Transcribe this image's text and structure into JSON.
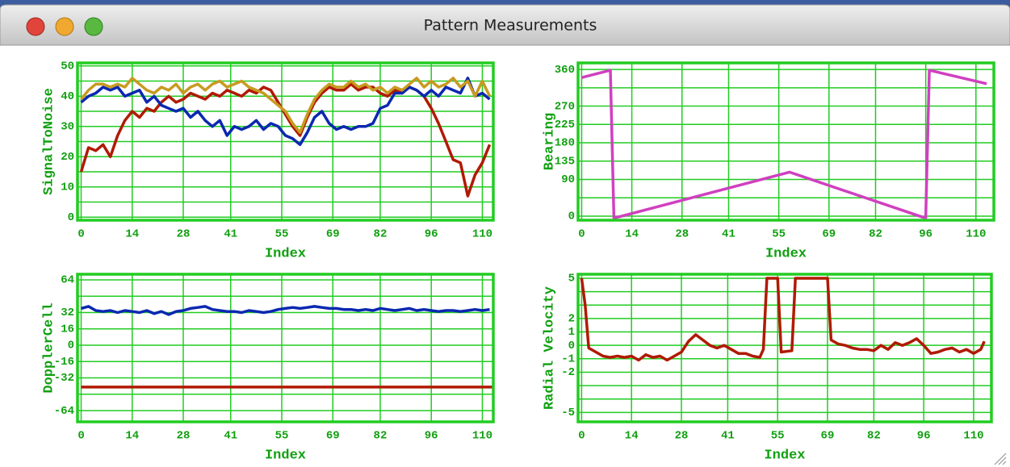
{
  "window": {
    "title": "Pattern Measurements"
  },
  "chart_data": [
    {
      "type": "line",
      "ylabel": "SignalToNoise",
      "xlabel": "Index",
      "xlim": [
        -1,
        113
      ],
      "ylim": [
        -1,
        51
      ],
      "xticks": [
        0,
        14,
        28,
        41,
        55,
        69,
        82,
        96,
        110
      ],
      "yticks": [
        0,
        10,
        20,
        30,
        40,
        50
      ],
      "yminor": [
        5,
        15,
        25,
        35,
        45
      ],
      "grid": true,
      "x": [
        0,
        2,
        4,
        6,
        8,
        10,
        12,
        14,
        16,
        18,
        20,
        22,
        24,
        26,
        28,
        30,
        32,
        34,
        36,
        38,
        40,
        42,
        44,
        46,
        48,
        50,
        52,
        54,
        56,
        58,
        60,
        62,
        64,
        66,
        68,
        70,
        72,
        74,
        76,
        78,
        80,
        82,
        84,
        86,
        88,
        90,
        92,
        94,
        96,
        98,
        100,
        102,
        104,
        106,
        108,
        110,
        112
      ],
      "series": [
        {
          "color": "#b01a00",
          "values": [
            15,
            23,
            22,
            24,
            20,
            27,
            32,
            35,
            33,
            36,
            35,
            38,
            40,
            38,
            39,
            41,
            40,
            39,
            41,
            40,
            42,
            41,
            40,
            42,
            41,
            43,
            42,
            38,
            34,
            30,
            27,
            33,
            38,
            41,
            43,
            42,
            42,
            44,
            42,
            43,
            43,
            41,
            40,
            42,
            41,
            43,
            42,
            40,
            36,
            31,
            25,
            19,
            18,
            7,
            14,
            18,
            24
          ]
        },
        {
          "color": "#0a28b0",
          "values": [
            38,
            40,
            41,
            43,
            42,
            43,
            40,
            41,
            42,
            38,
            40,
            37,
            36,
            35,
            36,
            33,
            35,
            32,
            30,
            32,
            27,
            30,
            29,
            30,
            32,
            29,
            31,
            30,
            27,
            26,
            24,
            28,
            33,
            35,
            31,
            29,
            30,
            29,
            30,
            30,
            31,
            36,
            37,
            41,
            41,
            43,
            42,
            40,
            42,
            40,
            43,
            42,
            41,
            46,
            40,
            41,
            39
          ]
        },
        {
          "color": "#c89a20",
          "values": [
            39,
            42,
            44,
            44,
            43,
            44,
            43,
            46,
            44,
            42,
            41,
            43,
            42,
            44,
            41,
            43,
            44,
            42,
            44,
            45,
            43,
            44,
            45,
            43,
            42,
            41,
            39,
            37,
            35,
            31,
            28,
            34,
            39,
            42,
            44,
            43,
            43,
            45,
            43,
            44,
            42,
            43,
            41,
            43,
            42,
            44,
            46,
            43,
            45,
            43,
            44,
            46,
            43,
            45,
            40,
            45,
            40
          ]
        }
      ]
    },
    {
      "type": "line",
      "ylabel": "Bearing",
      "xlabel": "Index",
      "xlim": [
        -1,
        115
      ],
      "ylim": [
        -10,
        376
      ],
      "xticks": [
        0,
        14,
        28,
        41,
        55,
        69,
        82,
        96,
        110
      ],
      "yticks": [
        0,
        90,
        135,
        180,
        225,
        270,
        360
      ],
      "yminor": [
        45,
        315
      ],
      "grid": true,
      "series": [
        {
          "color": "#d040c0",
          "x": [
            0,
            8,
            9,
            58,
            96,
            97,
            113
          ],
          "values": [
            340,
            358,
            -5,
            108,
            -5,
            358,
            325
          ]
        }
      ]
    },
    {
      "type": "line",
      "ylabel": "DopplerCell",
      "xlabel": "Index",
      "xlim": [
        -1,
        113
      ],
      "ylim": [
        -75,
        69.5
      ],
      "xticks": [
        0,
        14,
        28,
        41,
        55,
        69,
        82,
        96,
        110
      ],
      "yticks": [
        -64,
        -32,
        -16,
        0,
        16,
        32,
        64
      ],
      "yminor": [
        48,
        -48
      ],
      "grid": true,
      "x": [
        0,
        2,
        4,
        6,
        8,
        10,
        12,
        14,
        16,
        18,
        20,
        22,
        24,
        26,
        28,
        30,
        32,
        34,
        36,
        38,
        40,
        42,
        44,
        46,
        48,
        50,
        52,
        54,
        56,
        58,
        60,
        62,
        64,
        66,
        68,
        70,
        72,
        74,
        76,
        78,
        80,
        82,
        84,
        86,
        88,
        90,
        92,
        94,
        96,
        98,
        100,
        102,
        104,
        106,
        108,
        110,
        112
      ],
      "series": [
        {
          "color": "#0a28b0",
          "values": [
            36,
            38,
            34,
            33,
            34,
            32,
            34,
            33,
            32,
            34,
            31,
            33,
            30,
            33,
            34,
            36,
            37,
            38,
            35,
            34,
            33,
            33,
            32,
            34,
            33,
            32,
            33,
            35,
            36,
            37,
            36,
            37,
            38,
            37,
            36,
            36,
            35,
            35,
            34,
            35,
            34,
            36,
            35,
            34,
            35,
            36,
            34,
            35,
            34,
            33,
            34,
            34,
            33,
            34,
            35,
            34,
            35
          ]
        },
        {
          "color": "#b01a00",
          "x": [
            0,
            113
          ],
          "values": [
            -41,
            -41
          ]
        }
      ]
    },
    {
      "type": "line",
      "ylabel": "Radial Velocity",
      "xlabel": "Index",
      "xlim": [
        -1,
        115
      ],
      "ylim": [
        -5.7,
        5.3
      ],
      "xticks": [
        0,
        14,
        28,
        41,
        55,
        69,
        82,
        96,
        110
      ],
      "yticks": [
        -5,
        -2,
        -1,
        0,
        1,
        2,
        5
      ],
      "yminor": [
        3,
        4,
        -3,
        -4
      ],
      "grid": true,
      "series": [
        {
          "color": "#b01a00",
          "x": [
            0,
            1,
            2,
            4,
            6,
            8,
            10,
            12,
            14,
            16,
            18,
            20,
            22,
            24,
            26,
            28,
            30,
            32,
            34,
            36,
            38,
            40,
            42,
            44,
            46,
            48,
            50,
            51,
            52,
            55,
            56,
            59,
            60,
            69,
            70,
            72,
            74,
            76,
            78,
            80,
            82,
            84,
            86,
            88,
            90,
            92,
            94,
            96,
            98,
            100,
            102,
            104,
            106,
            108,
            110,
            112,
            113
          ],
          "values": [
            5,
            3,
            -0.2,
            -0.5,
            -0.8,
            -0.9,
            -0.8,
            -0.9,
            -0.8,
            -1.1,
            -0.7,
            -0.9,
            -0.8,
            -1.1,
            -0.8,
            -0.5,
            0.3,
            0.8,
            0.4,
            0,
            -0.2,
            0,
            -0.3,
            -0.6,
            -0.6,
            -0.8,
            -0.9,
            -0.3,
            5,
            5,
            -0.5,
            -0.4,
            5,
            5,
            0.4,
            0.1,
            0,
            -0.2,
            -0.3,
            -0.3,
            -0.4,
            0,
            -0.3,
            0.2,
            0,
            0.2,
            0.5,
            0,
            -0.6,
            -0.5,
            -0.3,
            -0.2,
            -0.5,
            -0.3,
            -0.6,
            -0.3,
            0.3
          ]
        }
      ]
    }
  ]
}
